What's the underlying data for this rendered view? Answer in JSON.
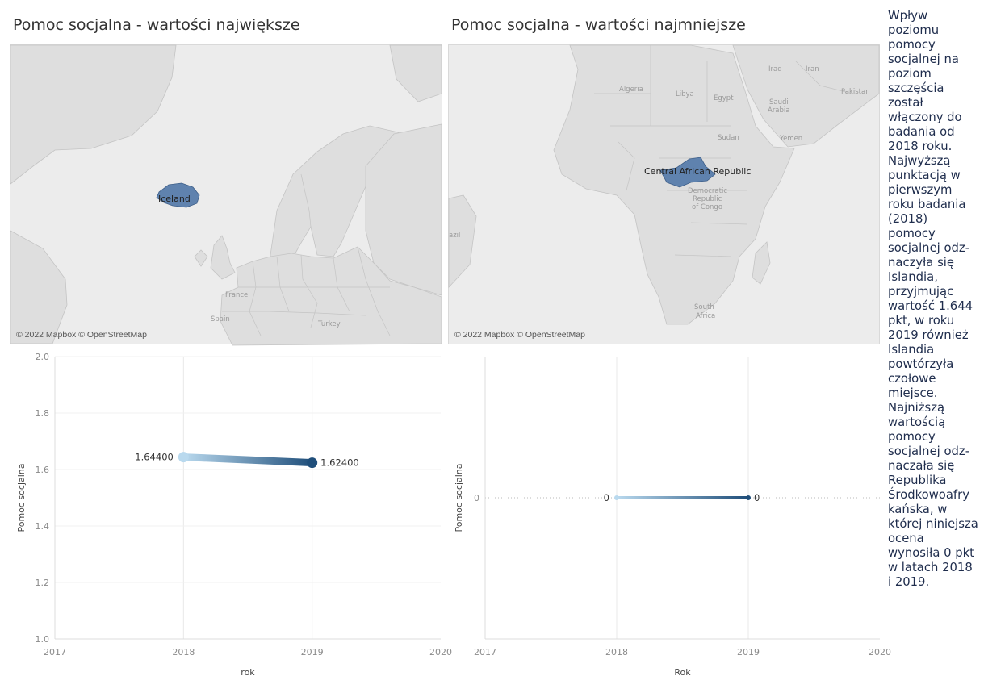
{
  "titles": {
    "left": "Pomoc socjalna - wartości największe",
    "right": "Pomoc socjalna - wartości najmniejsze"
  },
  "maps": {
    "left": {
      "attribution": "© 2022 Mapbox © OpenStreetMap",
      "highlighted_country": "Iceland",
      "labels": [
        "France",
        "Spain",
        "Turkey"
      ]
    },
    "right": {
      "attribution": "© 2022 Mapbox © OpenStreetMap",
      "highlighted_country": "Central African Republic",
      "labels": [
        "Algeria",
        "Libya",
        "Egypt",
        "Iraq",
        "Iran",
        "Saudi",
        "Arabia",
        "Sudan",
        "Yemen",
        "Pakistan",
        "Democratic",
        "Republic",
        "of Congo",
        "South",
        "Africa",
        "azil"
      ]
    },
    "highlight_color": "#5f82ae"
  },
  "chart_data": [
    {
      "type": "line",
      "xlabel": "rok",
      "ylabel": "Pomoc socjalna",
      "xlim": [
        2017,
        2020
      ],
      "x_ticks": [
        "2017",
        "2018",
        "2019",
        "2020"
      ],
      "ylim": [
        1.0,
        2.0
      ],
      "y_ticks": [
        "1.0",
        "1.2",
        "1.4",
        "1.6",
        "1.8",
        "2.0"
      ],
      "series": [
        {
          "x": [
            2018,
            2019
          ],
          "y": [
            1.644,
            1.624
          ],
          "labels": [
            "1.64400",
            "1.62400"
          ]
        }
      ],
      "gradient": [
        "#b9d9ee",
        "#1f4e7a"
      ],
      "grid": true
    },
    {
      "type": "line",
      "xlabel": "Rok",
      "ylabel": "Pomoc socjalna",
      "xlim": [
        2017,
        2020
      ],
      "x_ticks": [
        "2017",
        "2018",
        "2019",
        "2020"
      ],
      "ylim": [
        -1,
        1
      ],
      "y_ticks": [
        "0"
      ],
      "series": [
        {
          "x": [
            2018,
            2019
          ],
          "y": [
            0,
            0
          ],
          "labels": [
            "0",
            "0"
          ]
        }
      ],
      "gradient": [
        "#b9d9ee",
        "#1f4e7a"
      ],
      "grid": true
    }
  ],
  "story_text": "Wpływ poziomu pomocy socjalnej na poziom szczęścia został włączony do badania od 2018 roku. Najwyższą punktacją w pierwszym roku badania (2018) pomocy socjalnej odz- naczyła się Islandia, przyjmując wartość 1.644 pkt, w roku 2019 również Islandia powtórzyła czołowe miejsce. Najniższą wartością pomocy socjalnej odz- naczała się Republika Środkowoafry kańska, w której niniejsza ocena wynosiła 0 pkt w latach 2018 i 2019."
}
